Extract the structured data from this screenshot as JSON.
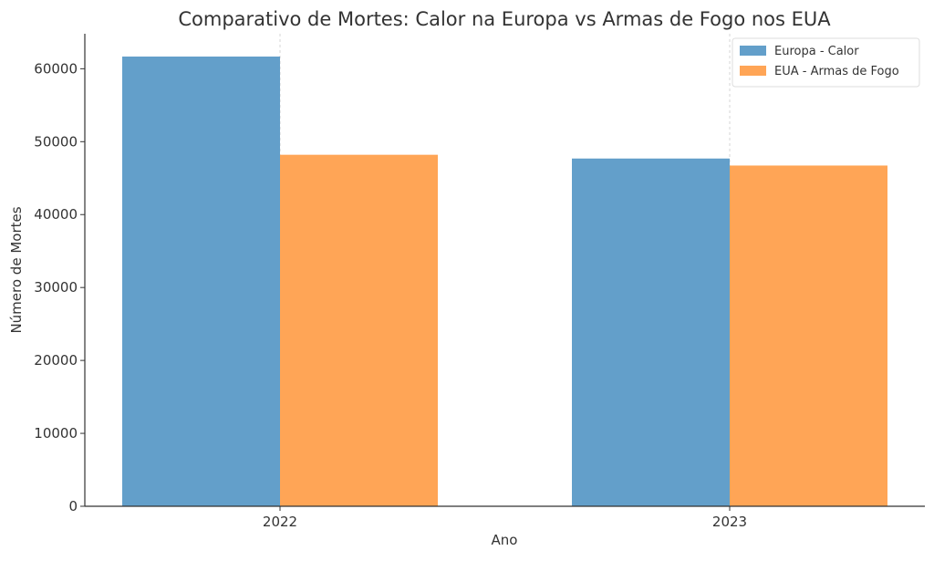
{
  "chart_data": {
    "type": "bar",
    "title": "Comparativo de Mortes: Calor na Europa vs Armas de Fogo nos EUA",
    "xlabel": "Ano",
    "ylabel": "Número de Mortes",
    "categories": [
      "2022",
      "2023"
    ],
    "series": [
      {
        "name": "Europa - Calor",
        "values": [
          61672,
          47690
        ],
        "color": "#639fca"
      },
      {
        "name": "EUA - Armas de Fogo",
        "values": [
          48204,
          46728
        ],
        "color": "#ffa556"
      }
    ],
    "ylim": [
      0,
      64800
    ],
    "yticks": [
      0,
      10000,
      20000,
      30000,
      40000,
      50000,
      60000
    ],
    "grid": "x-only",
    "legend_position": "top-right"
  }
}
